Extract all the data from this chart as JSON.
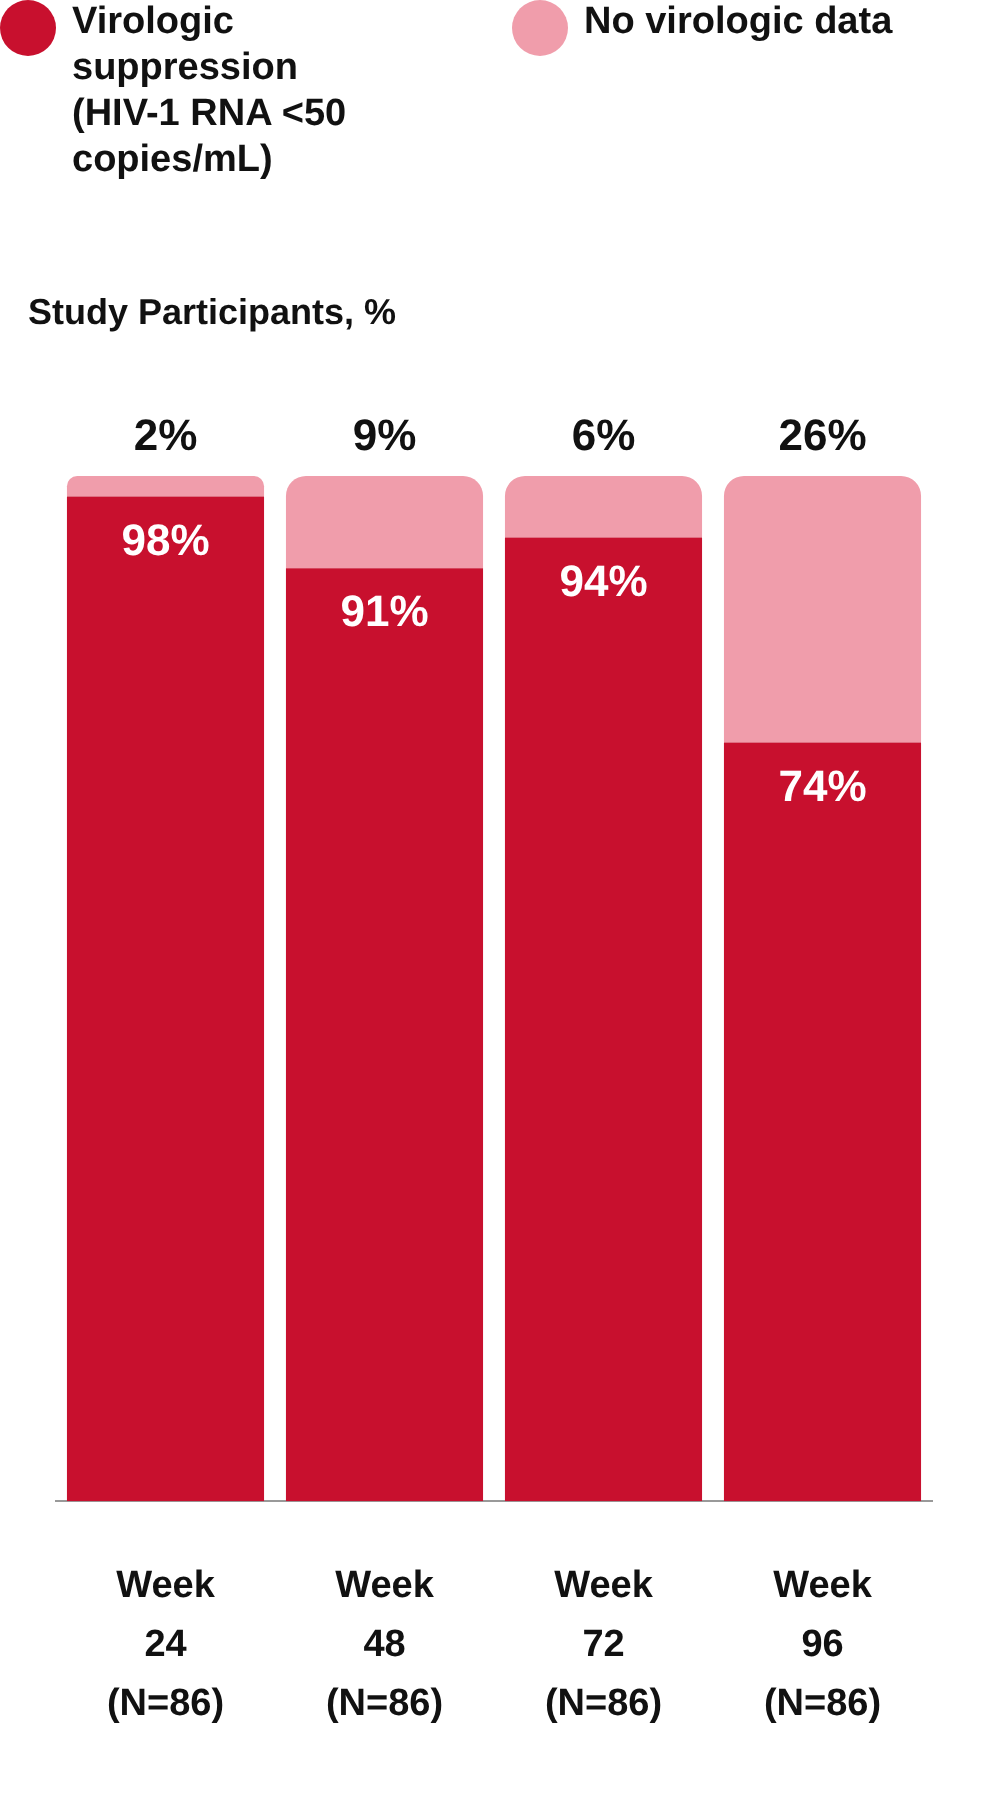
{
  "chart_data": {
    "type": "bar",
    "stacked": true,
    "ylabel": "Study Participants, %",
    "legend": "top",
    "categories": [
      "Week 24 (N=86)",
      "Week 48 (N=86)",
      "Week 72 (N=86)",
      "Week 96 (N=86)"
    ],
    "series": [
      {
        "name": "Virologic suppression (HIV-1 RNA <50 copies/mL)",
        "color": "#c8102e",
        "values": [
          98,
          91,
          94,
          74
        ],
        "value_labels": [
          "98%",
          "91%",
          "94%",
          "74%"
        ]
      },
      {
        "name": "No virologic data",
        "color": "#f09dab",
        "values": [
          2,
          9,
          6,
          26
        ],
        "value_labels": [
          "2%",
          "9%",
          "6%",
          "26%"
        ]
      }
    ]
  }
}
